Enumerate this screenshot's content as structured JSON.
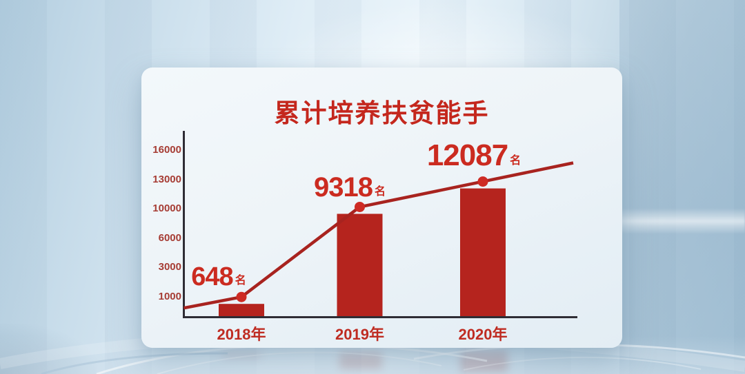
{
  "chart_data": {
    "type": "bar+line",
    "title": "累计培养扶贫能手",
    "categories": [
      "2018年",
      "2019年",
      "2020年"
    ],
    "values": [
      648,
      9318,
      12087
    ],
    "value_labels": [
      "648",
      "9318",
      "12087"
    ],
    "value_suffix": "名",
    "ytick_labels": [
      "16000",
      "13000",
      "10000",
      "6000",
      "3000",
      "1000"
    ],
    "ytick_values": [
      16000,
      13000,
      10000,
      6000,
      3000,
      1000
    ],
    "ylim": [
      0,
      17000
    ],
    "grid": false,
    "legend": "none",
    "colors": {
      "title": "#c4271d",
      "bar": "#b5241e",
      "line": "#a8231f",
      "marker": "#ce2b24",
      "value_text": "#cb2b20",
      "tick_text": "#a63c34",
      "xlabel_text": "#bf2c22",
      "axis": "#2e2c34"
    }
  }
}
